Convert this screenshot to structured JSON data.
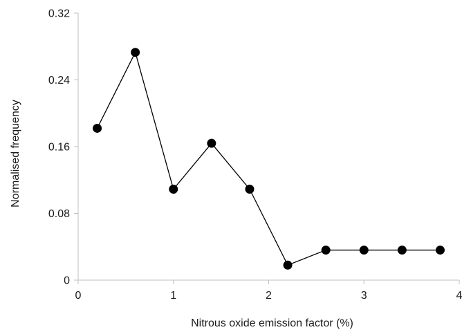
{
  "chart_data": {
    "type": "line",
    "title": "",
    "xlabel": "Nitrous oxide emission factor (%)",
    "ylabel": "Normalised frequency",
    "xlim": [
      0,
      4
    ],
    "ylim": [
      0,
      0.32
    ],
    "xticks": [
      "0",
      "1",
      "2",
      "3",
      "4"
    ],
    "yticks": [
      "0",
      "0.08",
      "0.16",
      "0.24",
      "0.32"
    ],
    "grid": false,
    "series": [
      {
        "marker": "filled-circle",
        "color": "#000000",
        "x": [
          0.2,
          0.6,
          1.0,
          1.4,
          1.8,
          2.2,
          2.6,
          3.0,
          3.4,
          3.8
        ],
        "y": [
          0.182,
          0.273,
          0.109,
          0.164,
          0.109,
          0.018,
          0.036,
          0.036,
          0.036,
          0.036
        ]
      }
    ]
  }
}
